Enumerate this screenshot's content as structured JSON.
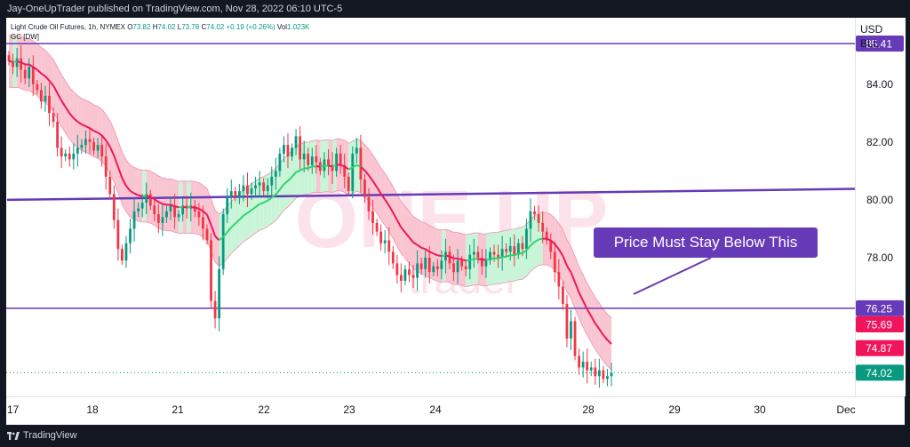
{
  "header": {
    "publisher_line": "Jay-OneUpTrader published on TradingView.com, Nov 28, 2022 06:10 UTC-5"
  },
  "legend": {
    "title": "Light Crude Oil Futures, 1h, NYMEX",
    "o_label": "O",
    "o_value": "73.82",
    "h_label": "H",
    "h_value": "74.02",
    "l_label": "L",
    "l_value": "73.78",
    "c_label": "C",
    "c_value": "74.02",
    "change": "+0.19 (+0.26%)",
    "vol_label": "Vol",
    "vol_value": "1.023K",
    "indicator": "GC [DW]"
  },
  "currency": {
    "line1": "USD",
    "line2": "BLL"
  },
  "watermark": {
    "big": "ONE UP",
    "small": "trader"
  },
  "annotation": {
    "text": "Price Must Stay Below This"
  },
  "footer": {
    "brand": "TradingView"
  },
  "colors": {
    "purple": "#673ab7",
    "up": "#089981",
    "down": "#f23645",
    "band_up_fill": "#c8f5d8",
    "band_down_fill": "#f9c5d1",
    "mid_up": "#2fd36f",
    "mid_down": "#f0155a"
  },
  "chart_data": {
    "type": "candlestick",
    "symbol": "Light Crude Oil Futures, 1h, NYMEX",
    "x_ticks": [
      {
        "label": "17",
        "t": 0
      },
      {
        "label": "18",
        "t": 1
      },
      {
        "label": "21",
        "t": 2
      },
      {
        "label": "22",
        "t": 3
      },
      {
        "label": "23",
        "t": 4
      },
      {
        "label": "24",
        "t": 5
      },
      {
        "label": "28",
        "t": 6
      },
      {
        "label": "29",
        "t": 7
      },
      {
        "label": "30",
        "t": 8
      },
      {
        "label": "Dec",
        "t": 9
      }
    ],
    "y_ticks": [
      "84.00",
      "82.00",
      "80.00",
      "78.00"
    ],
    "ylim": [
      73.2,
      86.3
    ],
    "xlim": [
      0,
      9.8
    ],
    "price_labels": [
      {
        "value": 85.41,
        "text": "85.41",
        "color": "#673ab7"
      },
      {
        "value": 76.25,
        "text": "76.25",
        "color": "#673ab7"
      },
      {
        "value": 75.69,
        "text": "75.69",
        "color": "#f0155a"
      },
      {
        "value": 74.87,
        "text": "74.87",
        "color": "#f0155a"
      },
      {
        "value": 74.02,
        "text": "74.02",
        "color": "#089981"
      }
    ],
    "horizontal_lines": [
      85.41,
      76.25
    ],
    "trend_line": {
      "t1": 0,
      "v1": 80.0,
      "t2": 9.8,
      "v2": 80.38
    },
    "last_price": 74.02,
    "closes": [
      84.8,
      84.6,
      84.9,
      84.5,
      84.2,
      84.6,
      84.0,
      83.8,
      83.4,
      83.6,
      83.0,
      82.7,
      81.8,
      81.5,
      81.6,
      81.4,
      81.6,
      81.8,
      81.9,
      82.1,
      82.0,
      81.7,
      81.9,
      81.5,
      80.8,
      80.2,
      79.3,
      78.3,
      77.9,
      78.5,
      79.0,
      79.6,
      79.7,
      79.9,
      80.2,
      79.8,
      79.5,
      79.2,
      79.4,
      79.6,
      79.8,
      79.4,
      79.5,
      79.8,
      79.7,
      79.8,
      79.6,
      79.4,
      79.0,
      78.6,
      76.5,
      75.9,
      77.6,
      79.5,
      80.1,
      80.3,
      80.1,
      80.3,
      80.5,
      80.2,
      80.4,
      80.5,
      80.6,
      80.3,
      80.5,
      80.8,
      81.0,
      81.6,
      81.9,
      81.5,
      81.8,
      82.2,
      81.4,
      81.6,
      81.2,
      81.5,
      81.3,
      81.0,
      81.4,
      81.2,
      81.0,
      81.6,
      81.2,
      80.8,
      80.3,
      81.6,
      81.8,
      80.7,
      80.1,
      79.6,
      79.2,
      78.9,
      78.5,
      78.6,
      78.2,
      77.8,
      77.4,
      77.2,
      77.6,
      77.4,
      77.3,
      77.8,
      77.6,
      78.0,
      77.5,
      77.7,
      77.6,
      77.9,
      78.2,
      77.8,
      77.5,
      77.9,
      77.7,
      77.6,
      78.1,
      78.2,
      78.0,
      77.7,
      77.9,
      78.2,
      78.1,
      78.0,
      78.3,
      78.2,
      78.4,
      78.1,
      78.5,
      78.3,
      79.0,
      79.6,
      79.5,
      79.2,
      78.9,
      78.6,
      78.2,
      77.5,
      77.0,
      76.4,
      75.2,
      75.8,
      74.6,
      74.2,
      74.4,
      74.1,
      74.2,
      73.9,
      74.1,
      73.8,
      73.9,
      74.02
    ]
  }
}
